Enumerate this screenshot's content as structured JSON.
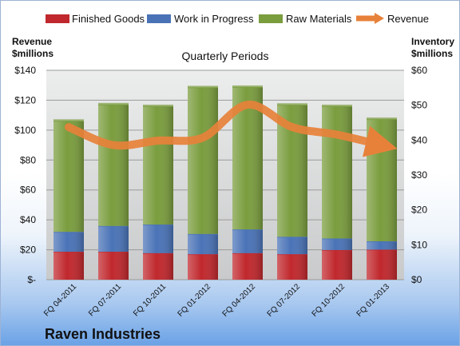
{
  "chart_data": {
    "type": "bar",
    "subtitle": "Quarterly Periods",
    "company": "Raven Industries",
    "categories": [
      "FQ 04-2011",
      "FQ 07-2011",
      "FQ 10-2011",
      "FQ 01-2012",
      "FQ 04-2012",
      "FQ 07-2012",
      "FQ 10-2012",
      "FQ 01-2013"
    ],
    "stacked": true,
    "series": [
      {
        "name": "Finished Goods",
        "axis": "right",
        "color": "#c0282d",
        "values": [
          8.0,
          8.0,
          7.6,
          7.3,
          7.6,
          7.3,
          8.5,
          8.6
        ]
      },
      {
        "name": "Work in Progress",
        "axis": "right",
        "color": "#4a73b7",
        "values": [
          5.7,
          7.4,
          8.2,
          5.8,
          6.8,
          5.0,
          3.3,
          2.4
        ]
      },
      {
        "name": "Raw Materials",
        "axis": "right",
        "color": "#7a9d3e",
        "values": [
          31.8,
          34.8,
          33.9,
          42.0,
          40.8,
          37.8,
          37.9,
          35.0
        ]
      },
      {
        "name": "Revenue",
        "type": "line",
        "axis": "left",
        "color": "#e7813a",
        "values": [
          102,
          90,
          93,
          95,
          117,
          102,
          97,
          90
        ]
      }
    ],
    "y_left": {
      "label_line1": "Revenue",
      "label_line2": "$millions",
      "range": [
        0,
        140
      ],
      "ticks": [
        "$-",
        "$20",
        "$40",
        "$60",
        "$80",
        "$100",
        "$120",
        "$140"
      ]
    },
    "y_right": {
      "label_line1": "Inventory",
      "label_line2": "$millions",
      "range": [
        0,
        60
      ],
      "ticks": [
        "$0",
        "$10",
        "$20",
        "$30",
        "$40",
        "$50",
        "$60"
      ]
    },
    "grid": true,
    "legend_position": "top"
  }
}
